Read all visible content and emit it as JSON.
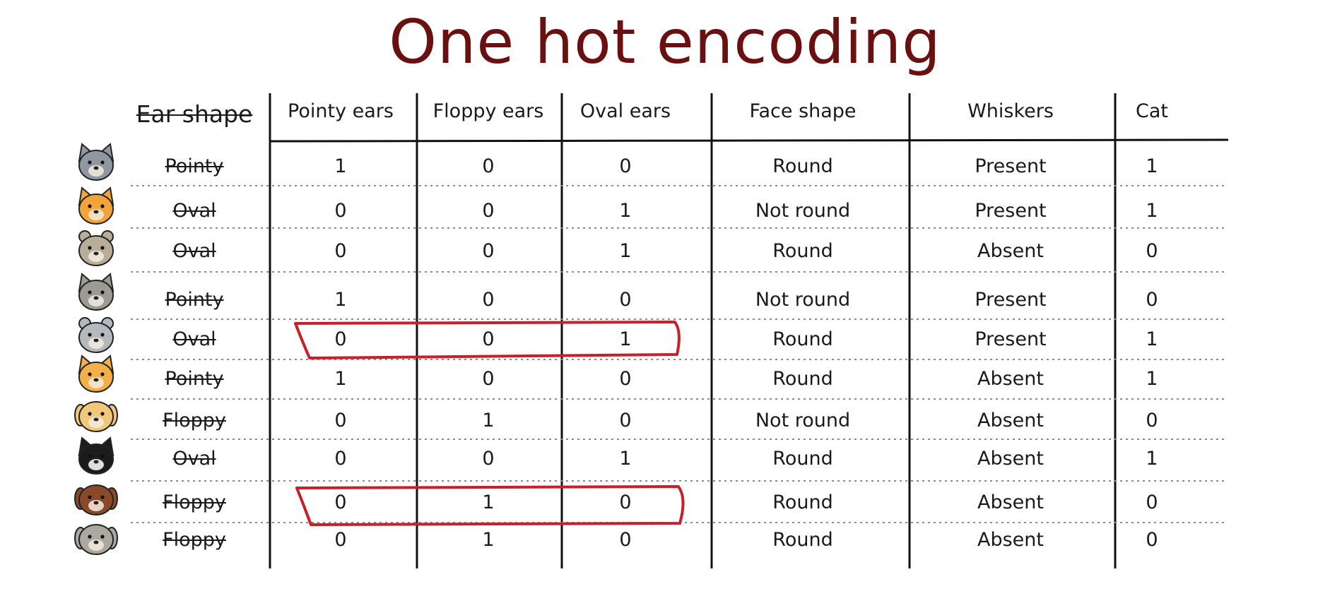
{
  "title": "One hot encoding",
  "headers": {
    "ear_shape": "Ear shape",
    "pointy_ears": "Pointy ears",
    "floppy_ears": "Floppy ears",
    "oval_ears": "Oval ears",
    "face_shape": "Face shape",
    "whiskers": "Whiskers",
    "cat": "Cat"
  },
  "rows": [
    {
      "animal": "gray-cat-icon",
      "ear_shape": "Pointy",
      "pointy": "1",
      "floppy": "0",
      "oval": "0",
      "face": "Round",
      "whiskers": "Present",
      "cat": "1"
    },
    {
      "animal": "orange-cat-icon",
      "ear_shape": "Oval",
      "pointy": "0",
      "floppy": "0",
      "oval": "1",
      "face": "Not round",
      "whiskers": "Present",
      "cat": "1"
    },
    {
      "animal": "tan-dog-icon",
      "ear_shape": "Oval",
      "pointy": "0",
      "floppy": "0",
      "oval": "1",
      "face": "Round",
      "whiskers": "Absent",
      "cat": "0"
    },
    {
      "animal": "gray-dog-icon",
      "ear_shape": "Pointy",
      "pointy": "1",
      "floppy": "0",
      "oval": "0",
      "face": "Not round",
      "whiskers": "Present",
      "cat": "0"
    },
    {
      "animal": "silver-cat-icon",
      "ear_shape": "Oval",
      "pointy": "0",
      "floppy": "0",
      "oval": "1",
      "face": "Round",
      "whiskers": "Present",
      "cat": "1"
    },
    {
      "animal": "ginger-cat-icon",
      "ear_shape": "Pointy",
      "pointy": "1",
      "floppy": "0",
      "oval": "0",
      "face": "Round",
      "whiskers": "Absent",
      "cat": "1"
    },
    {
      "animal": "yellow-dog-icon",
      "ear_shape": "Floppy",
      "pointy": "0",
      "floppy": "1",
      "oval": "0",
      "face": "Not round",
      "whiskers": "Absent",
      "cat": "0"
    },
    {
      "animal": "tuxedo-cat-icon",
      "ear_shape": "Oval",
      "pointy": "0",
      "floppy": "0",
      "oval": "1",
      "face": "Round",
      "whiskers": "Absent",
      "cat": "1"
    },
    {
      "animal": "brown-dog-icon",
      "ear_shape": "Floppy",
      "pointy": "0",
      "floppy": "1",
      "oval": "0",
      "face": "Round",
      "whiskers": "Absent",
      "cat": "0"
    },
    {
      "animal": "pug-dog-icon",
      "ear_shape": "Floppy",
      "pointy": "0",
      "floppy": "1",
      "oval": "0",
      "face": "Round",
      "whiskers": "Absent",
      "cat": "0"
    }
  ],
  "colors": {
    "title": "#6b1010",
    "highlight": "#c8202a",
    "rule": "#111111",
    "dotted": "#8a8a8a"
  },
  "highlighted_rows": [
    4,
    8
  ]
}
